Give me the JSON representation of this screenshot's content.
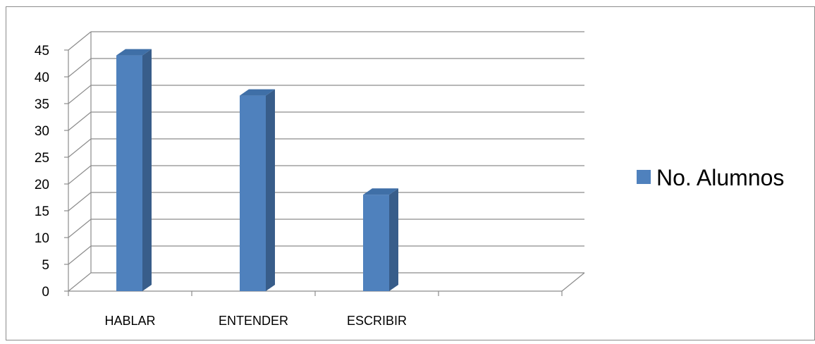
{
  "chart_data": {
    "type": "bar",
    "categories": [
      "HABLAR",
      "ENTENDER",
      "ESCRIBIR",
      ""
    ],
    "series": [
      {
        "name": "No. Alumnos",
        "values": [
          44,
          36.5,
          18,
          null
        ],
        "color": "#4F81BD"
      }
    ],
    "ylim": [
      0,
      45
    ],
    "yticks": [
      0,
      5,
      10,
      15,
      20,
      25,
      30,
      35,
      40,
      45
    ],
    "grid": true,
    "legend": "right",
    "three_d": true
  }
}
